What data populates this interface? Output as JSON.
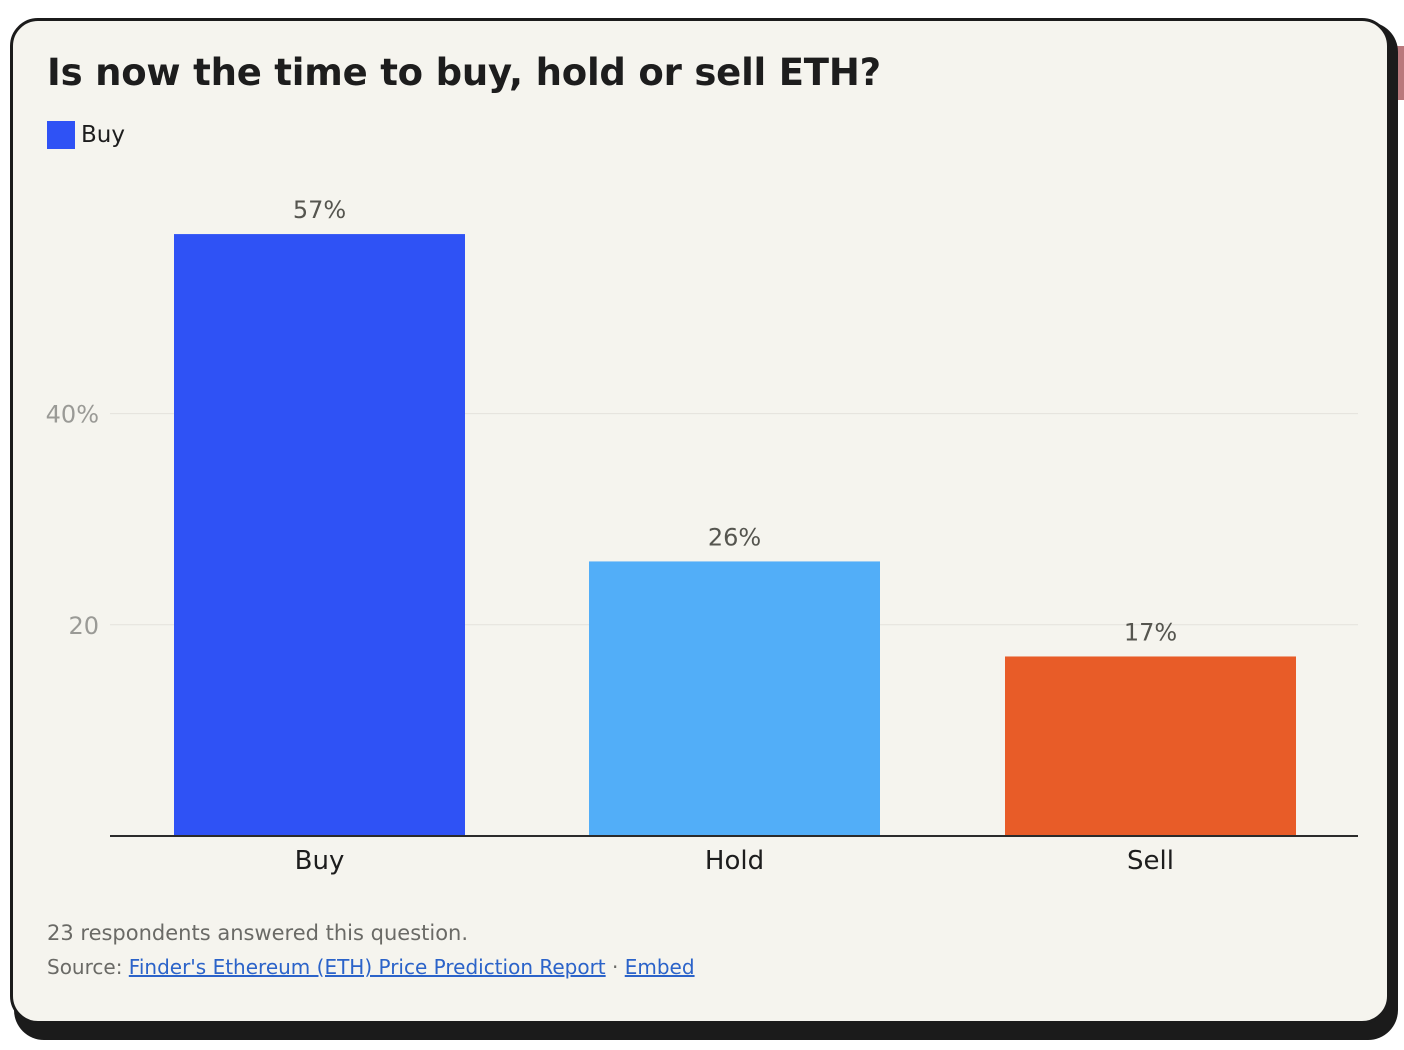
{
  "colors": {
    "card_background": "#f5f4ee",
    "buy": "#2f52f5",
    "hold": "#52aef8",
    "sell": "#e85c28",
    "grid": "#e3e2dc",
    "axis": "#2b2b2b"
  },
  "legend": {
    "label": "Buy",
    "color": "#2f52f5"
  },
  "footer": {
    "note": "23 respondents answered this question.",
    "source_prefix": "Source:",
    "source_link": "Finder's Ethereum (ETH) Price Prediction Report",
    "separator": "·",
    "embed_link": "Embed"
  },
  "chart_data": {
    "type": "bar",
    "title": "Is now the time to buy, hold or sell ETH?",
    "xlabel": "",
    "ylabel": "",
    "categories": [
      "Buy",
      "Hold",
      "Sell"
    ],
    "values": [
      57,
      26,
      17
    ],
    "value_labels": [
      "57%",
      "26%",
      "17%"
    ],
    "bar_colors": [
      "#2f52f5",
      "#52aef8",
      "#e85c28"
    ],
    "ylim": [
      0,
      60
    ],
    "yticks": [
      20,
      40
    ],
    "ytick_labels": [
      "20",
      "40%"
    ],
    "grid": true,
    "legend_position": "top-left"
  }
}
